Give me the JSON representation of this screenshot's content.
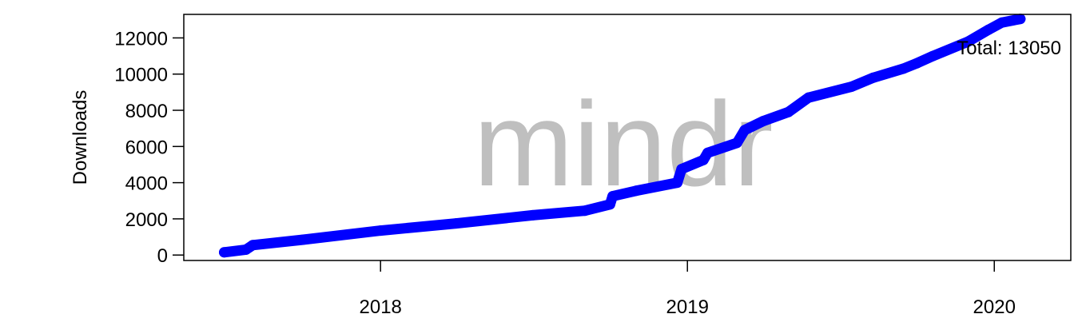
{
  "chart_data": {
    "type": "line",
    "ylabel": "Downloads",
    "xlabel": "",
    "watermark": "mindr",
    "annotation": "Total: 13050",
    "ylim": [
      -300,
      13300
    ],
    "xlim": [
      "2017-05-12",
      "2020-04-01"
    ],
    "y_ticks": [
      0,
      2000,
      4000,
      6000,
      8000,
      10000,
      12000
    ],
    "x_ticks": [
      "2018-01-01",
      "2019-01-01",
      "2020-01-01"
    ],
    "x_tick_labels": [
      "2018",
      "2019",
      "2020"
    ],
    "grid": false,
    "legend": "none",
    "series": [
      {
        "color": "#0000ff",
        "points": [
          [
            "2017-06-29",
            150
          ],
          [
            "2017-07-25",
            300
          ],
          [
            "2017-08-02",
            550
          ],
          [
            "2017-10-01",
            850
          ],
          [
            "2018-01-01",
            1350
          ],
          [
            "2018-04-01",
            1750
          ],
          [
            "2018-07-01",
            2200
          ],
          [
            "2018-09-01",
            2450
          ],
          [
            "2018-10-01",
            2800
          ],
          [
            "2018-10-04",
            3250
          ],
          [
            "2018-11-01",
            3550
          ],
          [
            "2018-12-20",
            4000
          ],
          [
            "2018-12-25",
            4750
          ],
          [
            "2019-01-20",
            5250
          ],
          [
            "2019-01-25",
            5650
          ],
          [
            "2019-03-01",
            6200
          ],
          [
            "2019-03-10",
            6900
          ],
          [
            "2019-04-01",
            7400
          ],
          [
            "2019-05-01",
            7900
          ],
          [
            "2019-05-25",
            8700
          ],
          [
            "2019-07-15",
            9300
          ],
          [
            "2019-08-10",
            9800
          ],
          [
            "2019-09-15",
            10300
          ],
          [
            "2019-10-01",
            10600
          ],
          [
            "2019-10-20",
            11000
          ],
          [
            "2019-12-01",
            11800
          ],
          [
            "2019-12-25",
            12450
          ],
          [
            "2020-01-10",
            12850
          ],
          [
            "2020-02-01",
            13050
          ]
        ]
      }
    ]
  }
}
